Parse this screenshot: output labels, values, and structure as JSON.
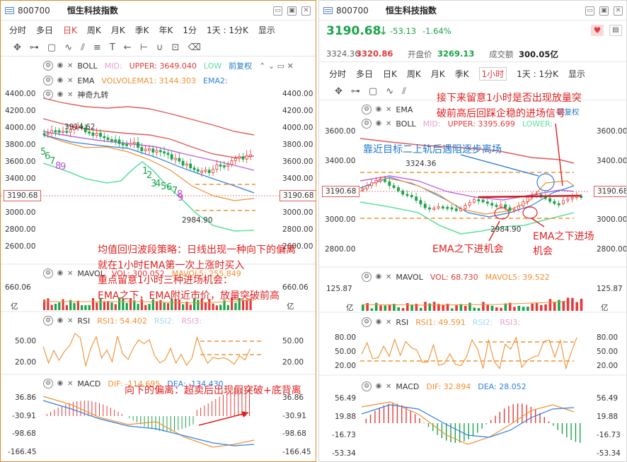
{
  "left": {
    "code": "800700",
    "name": "恒生科技指数",
    "tabs": [
      "分时",
      "多日",
      "日K",
      "周K",
      "月K",
      "季K",
      "年K",
      "1分",
      "1天 : 1分K",
      "显示"
    ],
    "active_tab": "日K",
    "boll": {
      "name": "BOLL",
      "mid": "MID:",
      "upper": "UPPER: 3649.040",
      "lower": "LOW",
      "fq": "前复权"
    },
    "ema": {
      "name": "EMA",
      "vol": "VOLVOLEMA1: 3144.303",
      "ema2": "EMA2:"
    },
    "sqjz": {
      "name": "神奇九转"
    },
    "yaxis": [
      "4400.00",
      "4200.00",
      "4000.00",
      "3800.00",
      "3600.00",
      "3400.00",
      "3200.00",
      "3000.00",
      "2800.00",
      "2600.00"
    ],
    "yaxis_right": [
      "4400.00",
      "4200.00",
      "4000.00",
      "3800.00",
      "3600.00",
      "3400.00",
      "3000.00",
      "2800.00",
      "2600.00"
    ],
    "price_tag": "3190.68",
    "high_label": "3914.62",
    "low_label": "2984.90",
    "nine_labels": [
      "5",
      "6",
      "7",
      "8",
      "9",
      "1",
      "2",
      "3",
      "4",
      "5",
      "6",
      "7",
      "8",
      "9"
    ],
    "mavol": {
      "name": "MAVOL",
      "vol": "VOL: 300.052",
      "mavol5": "MAVOL5: 255.849",
      "top": "660.06",
      "unit": "亿"
    },
    "rsi": {
      "name": "RSI",
      "rsi1": "RSI1: 54.402",
      "rsi2": "RSI2:",
      "rsi3": "RSI3:",
      "ticks": [
        "50.00",
        "20.00"
      ]
    },
    "macd": {
      "name": "MACD",
      "dif": "DIF: -114.695",
      "dea": "DEA: -134.430",
      "ticks": [
        "36.86",
        "-30.91",
        "-98.68",
        "-166.45"
      ]
    },
    "annotations": [
      "均值回归波段策略：日线出现一种向下的偏离",
      "就在1小时EMA第一次上涨时买入",
      "重点留意1小时三种进场机会：",
      "EMA之下，EMA附近市价，放量突破前高",
      "向下的偏离：超卖后出现假突破+底背离"
    ]
  },
  "right": {
    "code": "800700",
    "name": "恒生科技指数",
    "price": "3190.68",
    "arrow": "↓",
    "change": "-53.13",
    "pct": "-1.64%",
    "high_label": "3324.36",
    "high": "3320.86",
    "open_label": "开盘价",
    "open": "3269.13",
    "amount_label": "成交额",
    "amount": "300.05亿",
    "tabs": [
      "分时",
      "多日",
      "日K",
      "周K",
      "月K",
      "季K",
      "1小时",
      "1天 : 1分K",
      "显示"
    ],
    "active_tab": "1小时",
    "ema": {
      "name": "EMA"
    },
    "boll": {
      "name": "BOLL",
      "mid": "MID:",
      "upper": "UPPER: 3395.699",
      "lower": "LOWER:",
      "fq": "前复权"
    },
    "yaxis": [
      "3600.00",
      "3400.00",
      "3000.00",
      "2800.00"
    ],
    "yaxis_right": [
      "3600.00",
      "3400.00",
      "3000.00",
      "2800.00"
    ],
    "price_tag": "3190.68",
    "low_label": "2984.90",
    "mavol": {
      "name": "MAVOL",
      "vol": "VOL: 68.730",
      "mavol5": "MAVOL5: 39.522",
      "top": "125.87",
      "unit": "亿"
    },
    "rsi": {
      "name": "RSI",
      "rsi1": "RSI1: 49.591",
      "rsi2": "RSI2:",
      "rsi3": "RSI3:",
      "ticks": [
        "80.00",
        "50.00",
        "20.00"
      ]
    },
    "macd": {
      "name": "MACD",
      "dif": "DIF: 32.894",
      "dea": "DEA: 28.052",
      "ticks": [
        "56.49",
        "19.88",
        "-16.73",
        "-53.34"
      ]
    },
    "annotations": [
      "接下来留意1小时是否出现放量突",
      "破前高后回踩企稳的进场信号",
      "靠近目标二上轨后遇阻逐步离场",
      "EMA之下进机会",
      "EMA之下进场",
      "机会"
    ]
  },
  "colors": {
    "up": "#e23b3b",
    "down": "#1aa34a",
    "boll_upper": "#e05a5a",
    "mid": "#c060e0",
    "lower": "#5ee0a0",
    "ema_orange": "#f09030",
    "ema_blue": "#3080e0"
  }
}
